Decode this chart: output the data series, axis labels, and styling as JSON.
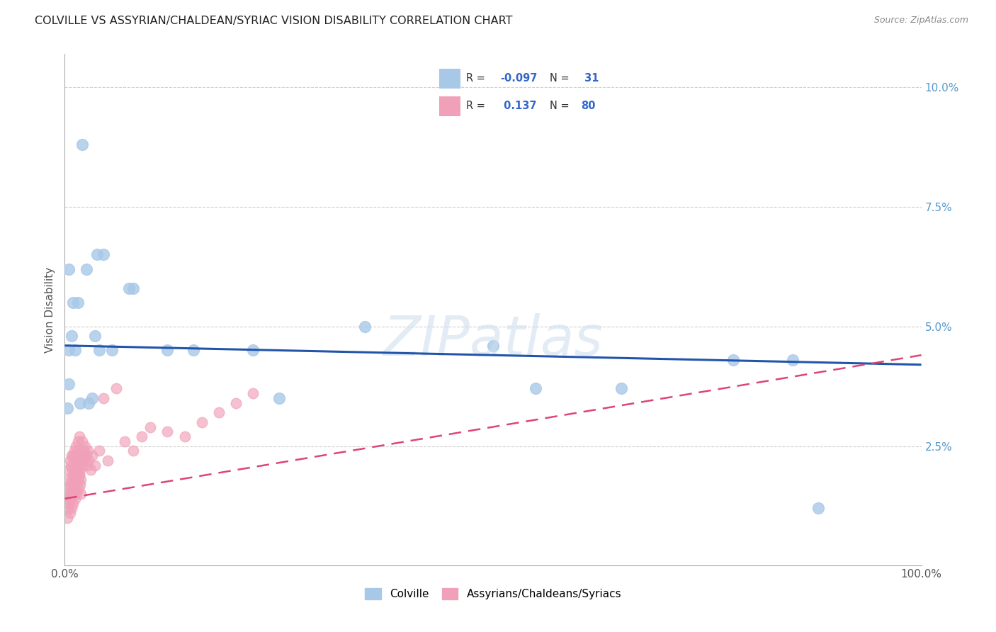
{
  "title": "COLVILLE VS ASSYRIAN/CHALDEAN/SYRIAC VISION DISABILITY CORRELATION CHART",
  "source": "Source: ZipAtlas.com",
  "ylabel": "Vision Disability",
  "blue_color": "#a8c8e8",
  "blue_edge_color": "#a8c8e8",
  "pink_color": "#f0a0b8",
  "pink_edge_color": "#f0a0b8",
  "blue_line_color": "#2255aa",
  "pink_line_color": "#dd4477",
  "background_color": "#ffffff",
  "grid_color": "#cccccc",
  "legend_r1": "R = ",
  "legend_v1": "-0.097",
  "legend_n1": "N = ",
  "legend_nv1": " 31",
  "legend_r2": "R = ",
  "legend_v2": " 0.137",
  "legend_n2": "N = ",
  "legend_nv2": "80",
  "blue_label": "Colville",
  "pink_label": "Assyrians/Chaldeans/Syriacs",
  "blue_points_x": [
    2.0,
    4.5,
    2.5,
    3.8,
    0.5,
    1.0,
    1.5,
    0.8,
    3.5,
    4.0,
    15.0,
    22.0,
    35.0,
    55.0,
    65.0,
    78.0,
    85.0,
    1.8,
    2.8,
    12.0,
    50.0,
    88.0,
    0.5,
    0.5,
    1.2,
    3.2,
    25.0,
    0.3,
    5.5,
    8.0,
    7.5
  ],
  "blue_points_y": [
    8.8,
    6.5,
    6.2,
    6.5,
    6.2,
    5.5,
    5.5,
    4.8,
    4.8,
    4.5,
    4.5,
    4.5,
    5.0,
    3.7,
    3.7,
    4.3,
    4.3,
    3.4,
    3.4,
    4.5,
    4.6,
    1.2,
    4.5,
    3.8,
    4.5,
    3.5,
    3.5,
    3.3,
    4.5,
    5.8,
    5.8
  ],
  "pink_points_x": [
    0.2,
    0.3,
    0.4,
    0.5,
    0.5,
    0.6,
    0.6,
    0.7,
    0.7,
    0.8,
    0.8,
    0.9,
    0.9,
    1.0,
    1.0,
    1.0,
    1.1,
    1.1,
    1.1,
    1.2,
    1.2,
    1.3,
    1.3,
    1.3,
    1.4,
    1.4,
    1.5,
    1.5,
    1.5,
    1.6,
    1.6,
    1.7,
    1.7,
    1.8,
    1.8,
    1.9,
    2.0,
    2.0,
    2.1,
    2.2,
    2.3,
    2.4,
    2.5,
    2.6,
    2.7,
    2.8,
    3.0,
    3.2,
    3.5,
    4.0,
    4.5,
    5.0,
    6.0,
    7.0,
    8.0,
    9.0,
    10.0,
    12.0,
    14.0,
    16.0,
    18.0,
    20.0,
    22.0,
    0.3,
    0.4,
    0.5,
    0.6,
    0.7,
    0.8,
    0.9,
    1.0,
    1.1,
    1.2,
    1.3,
    1.4,
    1.5,
    1.6,
    1.7,
    1.8,
    1.9
  ],
  "pink_points_y": [
    1.5,
    1.8,
    1.6,
    1.4,
    2.0,
    1.7,
    2.2,
    1.5,
    2.1,
    1.8,
    2.3,
    1.6,
    2.0,
    1.9,
    2.3,
    1.5,
    2.1,
    1.7,
    2.4,
    2.0,
    1.8,
    2.2,
    1.6,
    2.5,
    1.9,
    2.3,
    2.0,
    1.8,
    2.6,
    2.1,
    2.4,
    1.9,
    2.7,
    2.2,
    2.0,
    1.8,
    2.3,
    2.6,
    2.1,
    2.4,
    2.2,
    2.5,
    2.3,
    2.1,
    2.4,
    2.2,
    2.0,
    2.3,
    2.1,
    2.4,
    3.5,
    2.2,
    3.7,
    2.6,
    2.4,
    2.7,
    2.9,
    2.8,
    2.7,
    3.0,
    3.2,
    3.4,
    3.6,
    1.0,
    1.2,
    1.3,
    1.1,
    1.4,
    1.2,
    1.5,
    1.3,
    1.6,
    1.4,
    1.7,
    1.5,
    1.8,
    1.6,
    1.9,
    1.7,
    1.5
  ],
  "blue_line_x": [
    0,
    100
  ],
  "blue_line_y": [
    0.046,
    0.042
  ],
  "pink_line_x": [
    0,
    100
  ],
  "pink_line_y": [
    0.014,
    0.044
  ],
  "xlim": [
    0,
    100
  ],
  "ylim": [
    0,
    0.107
  ],
  "ytick_vals": [
    0.0,
    0.025,
    0.05,
    0.075,
    0.1
  ],
  "ytick_labels": [
    "",
    "2.5%",
    "5.0%",
    "7.5%",
    "10.0%"
  ],
  "xtick_positions": [
    0,
    25,
    50,
    75,
    100
  ],
  "xtick_labels": [
    "0.0%",
    "",
    "",
    "",
    "100.0%"
  ]
}
